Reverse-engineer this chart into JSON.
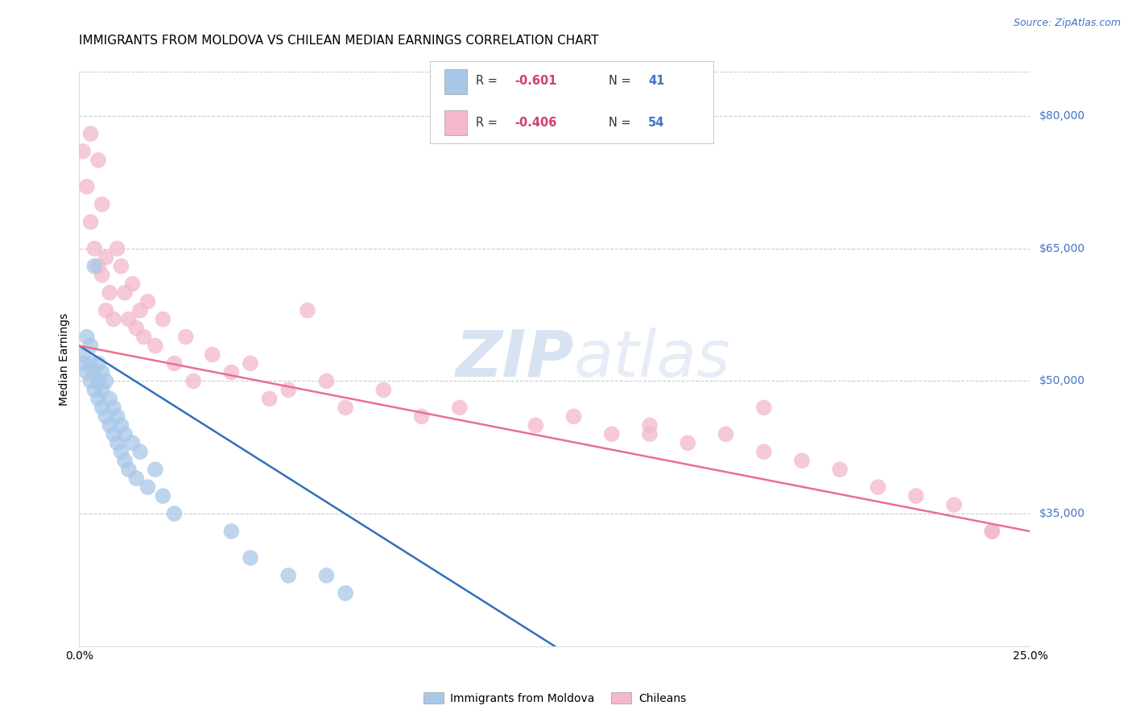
{
  "title": "IMMIGRANTS FROM MOLDOVA VS CHILEAN MEDIAN EARNINGS CORRELATION CHART",
  "source": "Source: ZipAtlas.com",
  "ylabel": "Median Earnings",
  "y_ticks": [
    35000,
    50000,
    65000,
    80000
  ],
  "y_tick_labels": [
    "$35,000",
    "$50,000",
    "$65,000",
    "$80,000"
  ],
  "x_range": [
    0.0,
    0.25
  ],
  "y_range": [
    20000,
    85000
  ],
  "watermark_zip": "ZIP",
  "watermark_atlas": "atlas",
  "blue_color": "#a8c8e8",
  "pink_color": "#f4b8cc",
  "blue_line_color": "#3070b8",
  "pink_line_color": "#e87090",
  "blue_line_x": [
    0.0,
    0.125
  ],
  "blue_line_y": [
    54000,
    20000
  ],
  "pink_line_x": [
    0.0,
    0.25
  ],
  "pink_line_y": [
    54000,
    33000
  ],
  "moldova_x": [
    0.001,
    0.001,
    0.002,
    0.002,
    0.003,
    0.003,
    0.003,
    0.004,
    0.004,
    0.004,
    0.005,
    0.005,
    0.005,
    0.006,
    0.006,
    0.006,
    0.007,
    0.007,
    0.008,
    0.008,
    0.009,
    0.009,
    0.01,
    0.01,
    0.011,
    0.011,
    0.012,
    0.012,
    0.013,
    0.014,
    0.015,
    0.016,
    0.018,
    0.02,
    0.022,
    0.025,
    0.04,
    0.045,
    0.055,
    0.065,
    0.07
  ],
  "moldova_y": [
    52000,
    53000,
    51000,
    55000,
    50000,
    52000,
    54000,
    49000,
    51000,
    63000,
    48000,
    50000,
    52000,
    47000,
    49000,
    51000,
    46000,
    50000,
    45000,
    48000,
    44000,
    47000,
    43000,
    46000,
    42000,
    45000,
    41000,
    44000,
    40000,
    43000,
    39000,
    42000,
    38000,
    40000,
    37000,
    35000,
    33000,
    30000,
    28000,
    28000,
    26000
  ],
  "chilean_x": [
    0.001,
    0.002,
    0.003,
    0.003,
    0.004,
    0.005,
    0.005,
    0.006,
    0.006,
    0.007,
    0.007,
    0.008,
    0.009,
    0.01,
    0.011,
    0.012,
    0.013,
    0.014,
    0.015,
    0.016,
    0.017,
    0.018,
    0.02,
    0.022,
    0.025,
    0.028,
    0.03,
    0.035,
    0.04,
    0.045,
    0.05,
    0.055,
    0.06,
    0.065,
    0.07,
    0.08,
    0.09,
    0.1,
    0.12,
    0.13,
    0.14,
    0.15,
    0.16,
    0.17,
    0.18,
    0.19,
    0.2,
    0.21,
    0.22,
    0.23,
    0.24,
    0.18,
    0.15,
    0.24
  ],
  "chilean_y": [
    76000,
    72000,
    68000,
    78000,
    65000,
    75000,
    63000,
    62000,
    70000,
    64000,
    58000,
    60000,
    57000,
    65000,
    63000,
    60000,
    57000,
    61000,
    56000,
    58000,
    55000,
    59000,
    54000,
    57000,
    52000,
    55000,
    50000,
    53000,
    51000,
    52000,
    48000,
    49000,
    58000,
    50000,
    47000,
    49000,
    46000,
    47000,
    45000,
    46000,
    44000,
    45000,
    43000,
    44000,
    42000,
    41000,
    40000,
    38000,
    37000,
    36000,
    33000,
    47000,
    44000,
    33000
  ],
  "title_fontsize": 11,
  "axis_label_fontsize": 10,
  "tick_fontsize": 10,
  "legend_label1": "Immigrants from Moldova",
  "legend_label2": "Chileans",
  "legend_r1_val": "-0.601",
  "legend_n1_val": "41",
  "legend_r2_val": "-0.406",
  "legend_n2_val": "54",
  "tick_color": "#4472c4",
  "source_color": "#4472c4"
}
